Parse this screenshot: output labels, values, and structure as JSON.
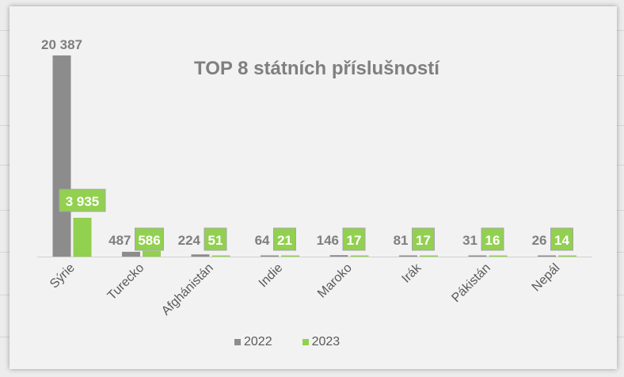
{
  "chart_data": {
    "type": "bar",
    "title": "TOP 8 státních příslušností",
    "categories": [
      "Sýrie",
      "Turecko",
      "Afghánistán",
      "Indie",
      "Maroko",
      "Irák",
      "Pákistán",
      "Nepál"
    ],
    "series": [
      {
        "name": "2022",
        "color": "#8c8c8c",
        "values": [
          20387,
          487,
          224,
          64,
          146,
          81,
          31,
          26
        ],
        "labels": [
          "20 387",
          "487",
          "224",
          "64",
          "146",
          "81",
          "31",
          "26"
        ]
      },
      {
        "name": "2023",
        "color": "#92d050",
        "values": [
          3935,
          586,
          51,
          21,
          17,
          17,
          16,
          14
        ],
        "labels": [
          "3 935",
          "586",
          "51",
          "21",
          "17",
          "17",
          "16",
          "14"
        ]
      }
    ],
    "xlabel": "",
    "ylabel": "",
    "ylim": [
      0,
      20387
    ],
    "grid": false,
    "legend_position": "bottom"
  }
}
